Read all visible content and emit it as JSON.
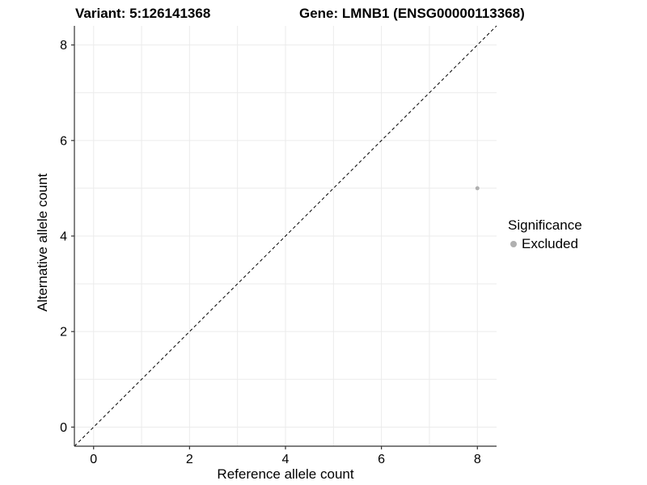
{
  "header": {
    "title_left": "Variant: 5:126141368",
    "title_right": "Gene: LMNB1 (ENSG00000113368)"
  },
  "chart_data": {
    "type": "scatter",
    "title": "Variant: 5:126141368    Gene: LMNB1 (ENSG00000113368)",
    "xlabel": "Reference allele count",
    "ylabel": "Alternative allele count",
    "xlim": [
      -0.4,
      8.4
    ],
    "ylim": [
      -0.4,
      8.4
    ],
    "xticks": [
      0,
      2,
      4,
      6,
      8
    ],
    "yticks": [
      0,
      2,
      4,
      6,
      8
    ],
    "grid": "on",
    "gridline_step": 1,
    "series": [
      {
        "name": "Excluded",
        "color": "#b0b0b0",
        "points": [
          {
            "x": 8,
            "y": 5
          }
        ]
      }
    ],
    "reference_line": {
      "kind": "identity",
      "equation": "y = x",
      "style": "dashed",
      "color": "#000000"
    },
    "legend": {
      "title": "Significance",
      "position": "right",
      "items": [
        {
          "label": "Excluded",
          "color": "#b0b0b0"
        }
      ]
    }
  },
  "colors": {
    "background": "#ffffff",
    "gridline": "#ebebeb",
    "axis_line": "#333333",
    "tick_text": "#000000",
    "point": "#b0b0b0"
  }
}
